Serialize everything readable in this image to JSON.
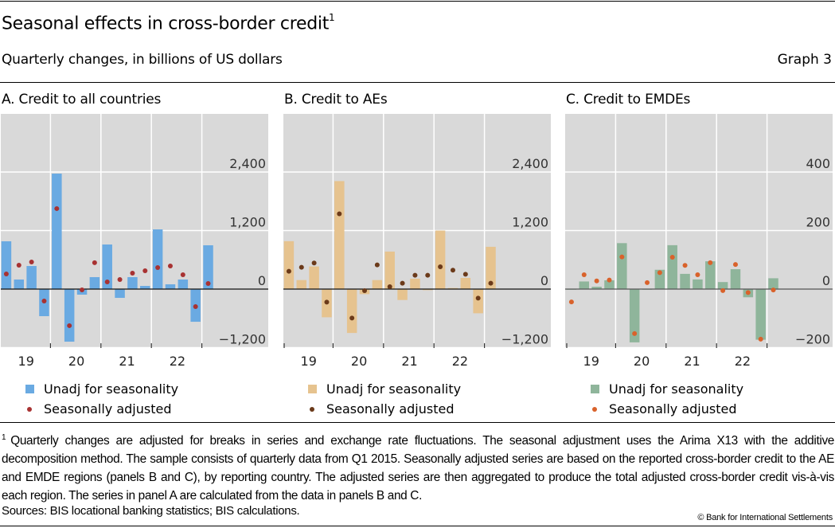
{
  "header": {
    "title": "Seasonal effects in cross-border credit",
    "title_footnote_ref": "1",
    "subtitle": "Quarterly changes, in billions of US dollars",
    "graph_number": "Graph 3"
  },
  "footnote": {
    "marker": "1",
    "text": "Quarterly changes are adjusted for breaks in series and exchange rate fluctuations. The seasonal adjustment uses the Arima X13 with the additive decomposition method. The sample consists of quarterly data from Q1 2015. Seasonally adjusted series are based on the reported cross-border credit to the AE and EMDE regions (panels B and C), by reporting country. The adjusted series are then aggregated to produce the total adjusted cross-border credit vis-à-vis each region. The series in panel A are calculated from the data in panels B and C."
  },
  "sources": "Sources: BIS locational banking statistics; BIS calculations.",
  "copyright": "© Bank for International Settlements",
  "chart_data": [
    {
      "type": "bar",
      "title": "A. Credit to all countries",
      "xlabel": "",
      "ylabel": "",
      "x": [
        "2019Q1",
        "2019Q2",
        "2019Q3",
        "2019Q4",
        "2020Q1",
        "2020Q2",
        "2020Q3",
        "2020Q4",
        "2021Q1",
        "2021Q2",
        "2021Q3",
        "2021Q4",
        "2022Q1",
        "2022Q2",
        "2022Q3",
        "2022Q4",
        "2023Q1"
      ],
      "year_labels": [
        "19",
        "20",
        "21",
        "22"
      ],
      "yticks": [
        -1200,
        0,
        1200,
        2400
      ],
      "ytick_labels": [
        "−1,200",
        "0",
        "1,200",
        "2,400"
      ],
      "ylim": [
        -1200,
        3600
      ],
      "grid": true,
      "legend_position": "bottom-left",
      "colors": {
        "bar": "#6aaae2",
        "dot": "#a83232"
      },
      "series": [
        {
          "name": "Unadj for seasonality",
          "kind": "bar",
          "values": [
            980,
            196,
            473,
            -555,
            2367,
            -1078,
            -114,
            245,
            914,
            -180,
            245,
            65,
            1224,
            98,
            196,
            -670,
            898
          ]
        },
        {
          "name": "Seasonally adjusted",
          "kind": "dot",
          "values": [
            310,
            490,
            555,
            -245,
            1650,
            -750,
            -16,
            540,
            147,
            196,
            327,
            376,
            441,
            473,
            294,
            -359,
            114
          ]
        }
      ]
    },
    {
      "type": "bar",
      "title": "B. Credit to AEs",
      "xlabel": "",
      "ylabel": "",
      "x": [
        "2019Q1",
        "2019Q2",
        "2019Q3",
        "2019Q4",
        "2020Q1",
        "2020Q2",
        "2020Q3",
        "2020Q4",
        "2021Q1",
        "2021Q2",
        "2021Q3",
        "2021Q4",
        "2022Q1",
        "2022Q2",
        "2022Q3",
        "2022Q4",
        "2023Q1"
      ],
      "year_labels": [
        "19",
        "20",
        "21",
        "22"
      ],
      "yticks": [
        -1200,
        0,
        1200,
        2400
      ],
      "ytick_labels": [
        "−1,200",
        "0",
        "1,200",
        "2,400"
      ],
      "ylim": [
        -1200,
        3600
      ],
      "grid": true,
      "legend_position": "bottom-left",
      "colors": {
        "bar": "#e6c38f",
        "dot": "#6b3a1a"
      },
      "series": [
        {
          "name": "Unadj for seasonality",
          "kind": "bar",
          "values": [
            982,
            185,
            464,
            -578,
            2214,
            -900,
            -104,
            185,
            769,
            -224,
            213,
            -22,
            1200,
            22,
            229,
            -496,
            867
          ]
        },
        {
          "name": "Seasonally adjusted",
          "kind": "dot",
          "values": [
            365,
            447,
            534,
            -267,
            1543,
            -594,
            -33,
            496,
            49,
            120,
            284,
            284,
            458,
            387,
            305,
            -185,
            120
          ]
        }
      ]
    },
    {
      "type": "bar",
      "title": "C. Credit to EMDEs",
      "xlabel": "",
      "ylabel": "",
      "x": [
        "2019Q1",
        "2019Q2",
        "2019Q3",
        "2019Q4",
        "2020Q1",
        "2020Q2",
        "2020Q3",
        "2020Q4",
        "2021Q1",
        "2021Q2",
        "2021Q3",
        "2021Q4",
        "2022Q1",
        "2022Q2",
        "2022Q3",
        "2022Q4",
        "2023Q1"
      ],
      "year_labels": [
        "19",
        "20",
        "21",
        "22"
      ],
      "yticks": [
        -200,
        0,
        200,
        400
      ],
      "ytick_labels": [
        "−200",
        "0",
        "200",
        "400"
      ],
      "ylim": [
        -200,
        600
      ],
      "grid": true,
      "legend_position": "bottom-left",
      "colors": {
        "bar": "#8fb59b",
        "dot": "#d9622b"
      },
      "series": [
        {
          "name": "Unadj for seasonality",
          "kind": "bar",
          "values": [
            -1,
            26,
            8,
            30,
            157,
            -182,
            0,
            66,
            150,
            52,
            33,
            95,
            24,
            68,
            -28,
            -173,
            37
          ]
        },
        {
          "name": "Seasonally adjusted",
          "kind": "dot",
          "values": [
            -44,
            49,
            28,
            31,
            110,
            -152,
            22,
            56,
            109,
            81,
            49,
            90,
            -5,
            84,
            -12,
            -171,
            -3
          ]
        }
      ]
    }
  ]
}
